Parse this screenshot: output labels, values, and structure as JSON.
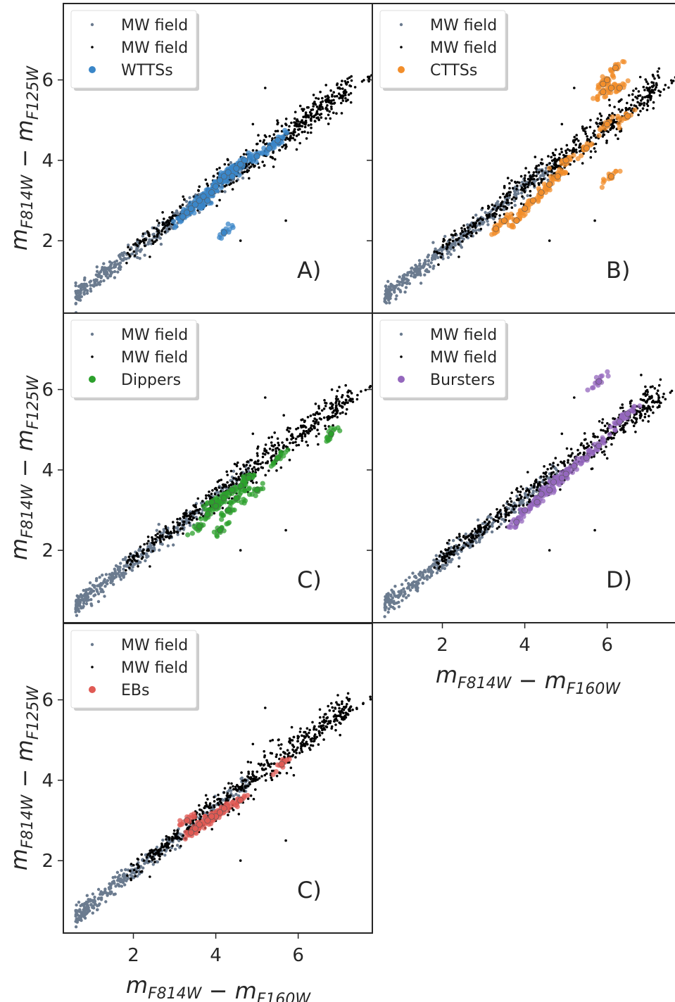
{
  "figure": {
    "xlabel_main": "m",
    "xlabel_sub1": "F814W",
    "xlabel_op": " − ",
    "xlabel_main2": "m",
    "xlabel_sub2": "F160W",
    "ylabel_main": "m",
    "ylabel_sub1": "F814W",
    "ylabel_op": " − ",
    "ylabel_main2": "m",
    "ylabel_sub2": "F125W"
  },
  "chart_data": [
    {
      "type": "scatter",
      "panel_label": "A)",
      "xlim": [
        0.3,
        7.8
      ],
      "ylim": [
        0.2,
        7.9
      ],
      "xticks": [
        "2",
        "4",
        "6"
      ],
      "yticks": [
        "2",
        "4",
        "6"
      ],
      "legend": [
        "MW field",
        "MW field",
        "WTTSs"
      ],
      "legend_position": "upper left",
      "series": [
        {
          "name": "MW field",
          "color": "#6b7b8f"
        },
        {
          "name": "MW field",
          "color": "#000000"
        },
        {
          "name": "WTTSs",
          "color": "#3a86c8",
          "points": [
            [
              3.3,
              2.7
            ],
            [
              3.5,
              2.9
            ],
            [
              3.7,
              3.1
            ],
            [
              3.9,
              3.2
            ],
            [
              4.0,
              3.35
            ],
            [
              4.1,
              3.5
            ],
            [
              4.2,
              3.6
            ],
            [
              4.3,
              3.7
            ],
            [
              4.5,
              3.8
            ],
            [
              4.7,
              4.0
            ],
            [
              5.0,
              4.1
            ],
            [
              5.3,
              4.3
            ],
            [
              5.5,
              4.5
            ],
            [
              4.2,
              2.2
            ],
            [
              3.4,
              2.8
            ],
            [
              3.8,
              3.0
            ],
            [
              4.4,
              3.6
            ],
            [
              3.6,
              3.0
            ],
            [
              3.2,
              2.6
            ],
            [
              4.6,
              3.9
            ]
          ]
        }
      ]
    },
    {
      "type": "scatter",
      "panel_label": "B)",
      "xlim": [
        0.3,
        7.8
      ],
      "ylim": [
        0.2,
        7.9
      ],
      "xticks": [
        "2",
        "4",
        "6"
      ],
      "yticks": [
        "2",
        "4",
        "6"
      ],
      "legend": [
        "MW field",
        "MW field",
        "CTTSs"
      ],
      "legend_position": "upper left",
      "series": [
        {
          "name": "MW field",
          "color": "#6b7b8f"
        },
        {
          "name": "MW field",
          "color": "#000000"
        },
        {
          "name": "CTTSs",
          "color": "#f28e2b",
          "points": [
            [
              6.2,
              6.3
            ],
            [
              6.0,
              6.0
            ],
            [
              5.9,
              5.9
            ],
            [
              6.1,
              5.8
            ],
            [
              6.3,
              5.8
            ],
            [
              5.9,
              5.7
            ],
            [
              6.5,
              5.1
            ],
            [
              6.0,
              4.9
            ],
            [
              6.1,
              3.6
            ],
            [
              5.0,
              4.0
            ],
            [
              5.5,
              4.3
            ],
            [
              3.8,
              2.5
            ],
            [
              4.0,
              2.8
            ],
            [
              4.2,
              3.0
            ],
            [
              4.4,
              3.2
            ],
            [
              4.6,
              3.4
            ],
            [
              4.8,
              3.6
            ],
            [
              3.5,
              2.5
            ],
            [
              3.3,
              2.3
            ]
          ]
        }
      ]
    },
    {
      "type": "scatter",
      "panel_label": "C)",
      "xlim": [
        0.3,
        7.8
      ],
      "ylim": [
        0.2,
        7.9
      ],
      "xticks": [
        "2",
        "4",
        "6"
      ],
      "yticks": [
        "2",
        "4",
        "6"
      ],
      "legend": [
        "MW field",
        "MW field",
        "Dippers"
      ],
      "legend_position": "upper left",
      "series": [
        {
          "name": "MW field",
          "color": "#6b7b8f"
        },
        {
          "name": "MW field",
          "color": "#000000"
        },
        {
          "name": "Dippers",
          "color": "#2ca02c",
          "points": [
            [
              6.8,
              4.9
            ],
            [
              5.5,
              4.3
            ],
            [
              4.2,
              3.3
            ],
            [
              4.4,
              3.5
            ],
            [
              4.0,
              3.1
            ],
            [
              3.8,
              2.9
            ],
            [
              4.6,
              3.6
            ],
            [
              4.8,
              3.8
            ],
            [
              4.1,
              2.5
            ],
            [
              3.6,
              2.6
            ],
            [
              5.0,
              3.5
            ],
            [
              4.3,
              3.0
            ],
            [
              3.9,
              3.2
            ],
            [
              4.5,
              3.3
            ]
          ]
        }
      ]
    },
    {
      "type": "scatter",
      "panel_label": "D)",
      "xlim": [
        0.3,
        7.8
      ],
      "ylim": [
        0.2,
        7.9
      ],
      "xticks": [
        "2",
        "4",
        "6"
      ],
      "yticks": [
        "2",
        "4",
        "6"
      ],
      "legend": [
        "MW field",
        "MW field",
        "Bursters"
      ],
      "legend_position": "upper left",
      "series": [
        {
          "name": "MW field",
          "color": "#6b7b8f"
        },
        {
          "name": "MW field",
          "color": "#000000"
        },
        {
          "name": "Bursters",
          "color": "#9467bd",
          "points": [
            [
              5.8,
              6.2
            ],
            [
              6.5,
              5.4
            ],
            [
              6.3,
              5.2
            ],
            [
              5.8,
              4.6
            ],
            [
              5.5,
              4.3
            ],
            [
              5.2,
              4.1
            ],
            [
              4.9,
              3.8
            ],
            [
              4.6,
              3.5
            ],
            [
              4.3,
              3.2
            ],
            [
              4.0,
              3.0
            ],
            [
              3.8,
              2.7
            ],
            [
              4.4,
              3.4
            ],
            [
              4.7,
              3.7
            ],
            [
              5.0,
              3.9
            ]
          ]
        }
      ]
    },
    {
      "type": "scatter",
      "panel_label": "C)",
      "xlim": [
        0.3,
        7.8
      ],
      "ylim": [
        0.2,
        7.9
      ],
      "xticks": [
        "2",
        "4",
        "6"
      ],
      "yticks": [
        "2",
        "4",
        "6"
      ],
      "legend": [
        "MW field",
        "MW field",
        "EBs"
      ],
      "legend_position": "upper left",
      "series": [
        {
          "name": "MW field",
          "color": "#6b7b8f"
        },
        {
          "name": "MW field",
          "color": "#000000"
        },
        {
          "name": "EBs",
          "color": "#e05a54",
          "points": [
            [
              5.6,
              4.4
            ],
            [
              4.6,
              3.5
            ],
            [
              4.2,
              3.3
            ],
            [
              4.0,
              3.1
            ],
            [
              3.8,
              3.0
            ],
            [
              3.6,
              2.9
            ],
            [
              3.4,
              2.7
            ],
            [
              3.3,
              3.0
            ],
            [
              3.5,
              2.8
            ],
            [
              3.9,
              3.1
            ],
            [
              4.1,
              3.2
            ]
          ]
        }
      ]
    }
  ]
}
